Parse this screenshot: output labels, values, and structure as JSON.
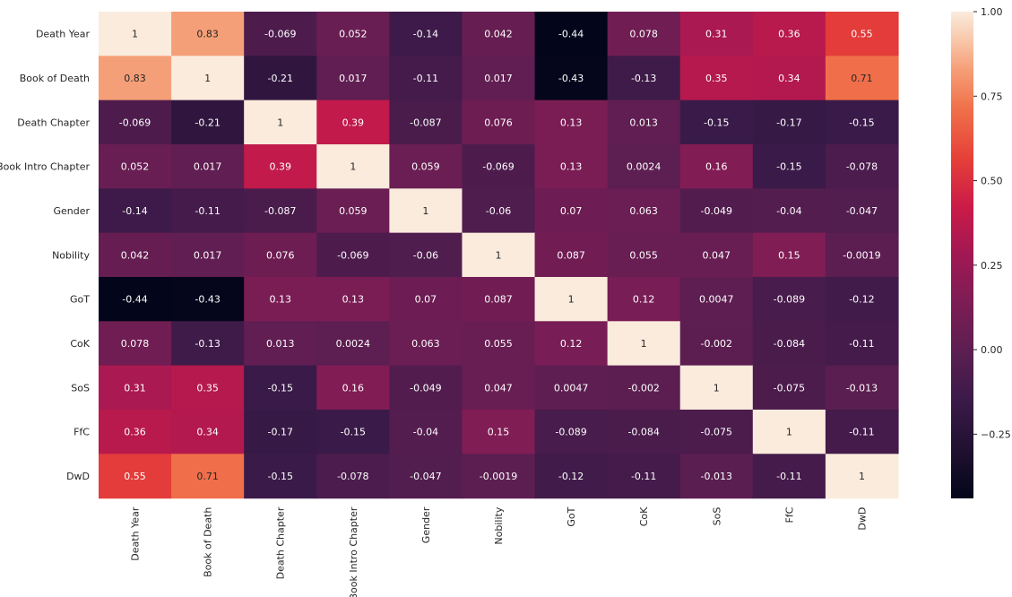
{
  "chart_data": {
    "type": "heatmap",
    "title": "",
    "xlabel": "",
    "ylabel": "",
    "row_labels": [
      "Death Year",
      "Book of Death",
      "Death Chapter",
      "Book Intro Chapter",
      "Gender",
      "Nobility",
      "GoT",
      "CoK",
      "SoS",
      "FfC",
      "DwD"
    ],
    "col_labels": [
      "Death Year",
      "Book of Death",
      "Death Chapter",
      "Book Intro Chapter",
      "Gender",
      "Nobility",
      "GoT",
      "CoK",
      "SoS",
      "FfC",
      "DwD"
    ],
    "values": [
      [
        "1",
        "0.83",
        "-0.069",
        "0.052",
        "-0.14",
        "0.042",
        "-0.44",
        "0.078",
        "0.31",
        "0.36",
        "0.55"
      ],
      [
        "0.83",
        "1",
        "-0.21",
        "0.017",
        "-0.11",
        "0.017",
        "-0.43",
        "-0.13",
        "0.35",
        "0.34",
        "0.71"
      ],
      [
        "-0.069",
        "-0.21",
        "1",
        "0.39",
        "-0.087",
        "0.076",
        "0.13",
        "0.013",
        "-0.15",
        "-0.17",
        "-0.15"
      ],
      [
        "0.052",
        "0.017",
        "0.39",
        "1",
        "0.059",
        "-0.069",
        "0.13",
        "0.0024",
        "0.16",
        "-0.15",
        "-0.078"
      ],
      [
        "-0.14",
        "-0.11",
        "-0.087",
        "0.059",
        "1",
        "-0.06",
        "0.07",
        "0.063",
        "-0.049",
        "-0.04",
        "-0.047"
      ],
      [
        "0.042",
        "0.017",
        "0.076",
        "-0.069",
        "-0.06",
        "1",
        "0.087",
        "0.055",
        "0.047",
        "0.15",
        "-0.0019"
      ],
      [
        "-0.44",
        "-0.43",
        "0.13",
        "0.13",
        "0.07",
        "0.087",
        "1",
        "0.12",
        "0.0047",
        "-0.089",
        "-0.12"
      ],
      [
        "0.078",
        "-0.13",
        "0.013",
        "0.0024",
        "0.063",
        "0.055",
        "0.12",
        "1",
        "-0.002",
        "-0.084",
        "-0.11"
      ],
      [
        "0.31",
        "0.35",
        "-0.15",
        "0.16",
        "-0.049",
        "0.047",
        "0.0047",
        "-0.002",
        "1",
        "-0.075",
        "-0.013"
      ],
      [
        "0.36",
        "0.34",
        "-0.17",
        "-0.15",
        "-0.04",
        "0.15",
        "-0.089",
        "-0.084",
        "-0.075",
        "1",
        "-0.11"
      ],
      [
        "0.55",
        "0.71",
        "-0.15",
        "-0.078",
        "-0.047",
        "-0.0019",
        "-0.12",
        "-0.11",
        "-0.013",
        "-0.11",
        "1"
      ]
    ],
    "colorbar": {
      "vmin": -0.44,
      "vmax": 1.0,
      "ticks": [
        1.0,
        0.75,
        0.5,
        0.25,
        0.0,
        -0.25
      ],
      "tick_labels": [
        "1.00",
        "0.75",
        "0.50",
        "0.25",
        "0.00",
        "−0.25"
      ],
      "colormap": "rocket"
    }
  }
}
